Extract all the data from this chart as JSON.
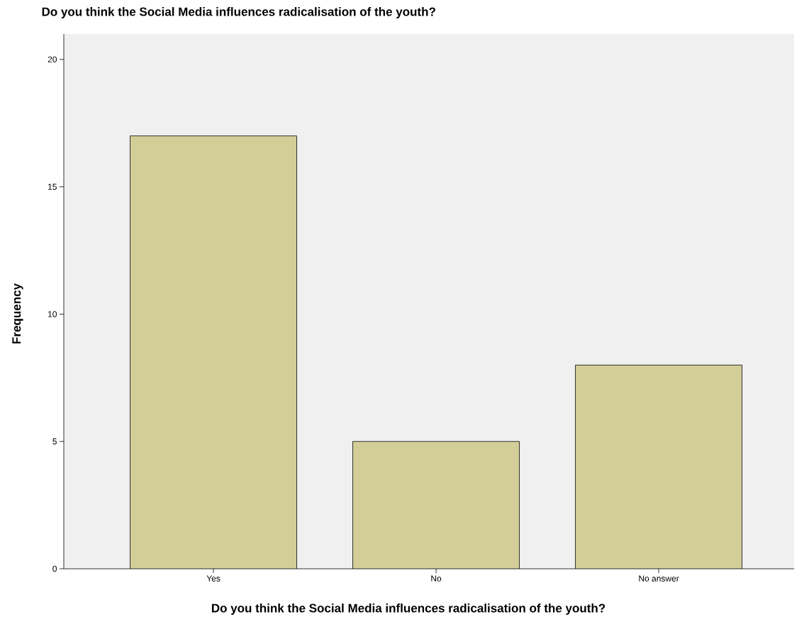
{
  "chart_data": {
    "type": "bar",
    "title": "Do you think the Social Media influences radicalisation of the youth?",
    "xlabel": "Do you think the Social Media influences radicalisation of the youth?",
    "ylabel": "Frequency",
    "categories": [
      "Yes",
      "No",
      "No answer"
    ],
    "values": [
      17,
      5,
      8
    ],
    "color": "#d3ce97",
    "ylim": [
      0,
      21
    ],
    "yticks": [
      0,
      5,
      10,
      15,
      20
    ]
  }
}
